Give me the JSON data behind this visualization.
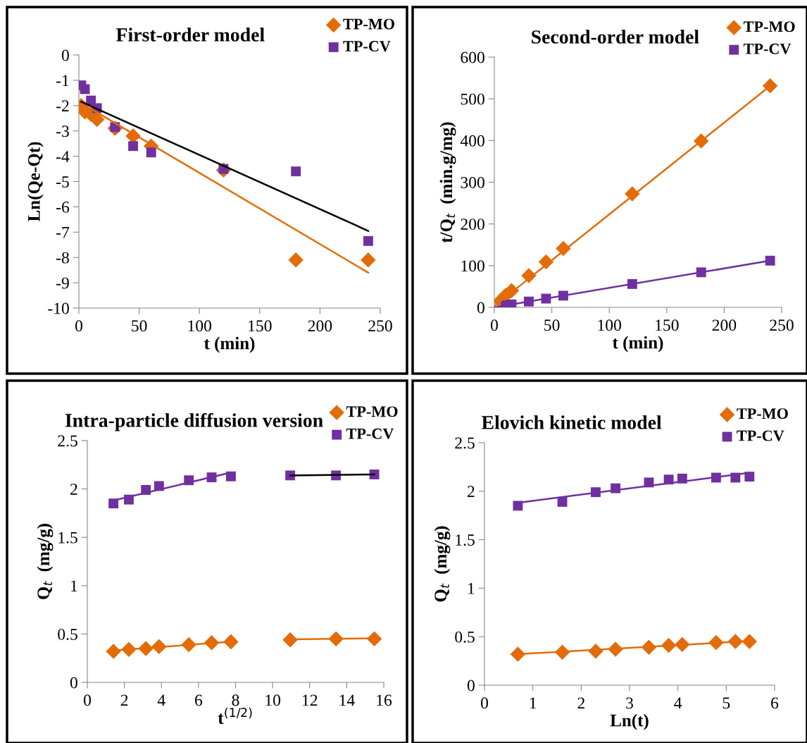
{
  "chart_data": [
    {
      "type": "scatter",
      "title": "First-order model",
      "xlabel": "t (min)",
      "ylabel": "Ln(Qe-Qt)",
      "xlim": [
        0,
        250
      ],
      "xticks": [
        0,
        50,
        100,
        150,
        200,
        250
      ],
      "ylim": [
        -10,
        0
      ],
      "yticks": [
        -10,
        -9,
        -8,
        -7,
        -6,
        -5,
        -4,
        -3,
        -2,
        -1,
        0
      ],
      "grid": false,
      "legend": "top right",
      "x": [
        2,
        5,
        10,
        15,
        30,
        45,
        60,
        120,
        180,
        240
      ],
      "series": [
        {
          "name": "TP-MO",
          "color": "#e36c09",
          "marker": "diamond",
          "values": [
            -2.0,
            -2.25,
            -2.35,
            -2.55,
            -2.9,
            -3.2,
            -3.6,
            -4.55,
            -8.1,
            -8.1
          ]
        },
        {
          "name": "TP-CV",
          "color": "#7030a0",
          "marker": "square",
          "values": [
            -1.2,
            -1.35,
            -1.8,
            -2.1,
            -2.85,
            -3.6,
            -3.85,
            -4.5,
            -4.6,
            -7.35
          ]
        },
        {
          "type": "line",
          "color": "#e36c09",
          "x": [
            2,
            240
          ],
          "values": [
            -1.9,
            -8.6
          ]
        },
        {
          "type": "line",
          "color": "#000000",
          "x": [
            2,
            240
          ],
          "values": [
            -1.85,
            -6.95
          ]
        }
      ]
    },
    {
      "type": "scatter",
      "title": "Second-order model",
      "xlabel": "t (min)",
      "ylabel": "t/Q$_{t}$  (min.g/mg)",
      "xlim": [
        0,
        250
      ],
      "xticks": [
        0,
        50,
        100,
        150,
        200,
        250
      ],
      "ylim": [
        0,
        600
      ],
      "yticks": [
        0,
        100,
        200,
        300,
        400,
        500,
        600
      ],
      "grid": false,
      "legend": "top right",
      "series": [
        {
          "name": "TP-MO",
          "color": "#e36c09",
          "marker": "diamond",
          "x": [
            5,
            10,
            15,
            30,
            45,
            60,
            120,
            180,
            240
          ],
          "values": [
            15,
            29,
            40,
            76,
            109,
            141,
            272,
            399,
            531
          ]
        },
        {
          "name": "TP-CV",
          "color": "#7030a0",
          "marker": "square",
          "x": [
            10,
            15,
            30,
            45,
            60,
            120,
            180,
            240
          ],
          "values": [
            5,
            7,
            14,
            21,
            28,
            56,
            84,
            112
          ]
        },
        {
          "type": "line",
          "color": "#e36c09",
          "x": [
            0,
            240
          ],
          "values": [
            3,
            531
          ]
        },
        {
          "type": "line",
          "color": "#7030a0",
          "x": [
            0,
            240
          ],
          "values": [
            0,
            112
          ]
        }
      ]
    },
    {
      "type": "scatter",
      "title": "Intra-particle diffusion version",
      "xlabel": "t$^{(1/2)}$",
      "ylabel": "Q$_{t}$  (mg/g)",
      "xlim": [
        0,
        16
      ],
      "xticks": [
        0,
        2,
        4,
        6,
        8,
        10,
        12,
        14,
        16
      ],
      "ylim": [
        0,
        2.5
      ],
      "yticks": [
        0,
        0.5,
        1,
        1.5,
        2,
        2.5
      ],
      "grid": false,
      "legend": "top right",
      "x": [
        1.41,
        2.24,
        3.16,
        3.87,
        5.48,
        6.71,
        7.75,
        10.95,
        13.42,
        15.49
      ],
      "series": [
        {
          "name": "TP-MO",
          "color": "#e36c09",
          "marker": "diamond",
          "values": [
            0.32,
            0.34,
            0.35,
            0.37,
            0.39,
            0.41,
            0.42,
            0.44,
            0.45,
            0.45
          ]
        },
        {
          "name": "TP-CV",
          "color": "#7030a0",
          "marker": "square",
          "values": [
            1.85,
            1.89,
            1.99,
            2.03,
            2.09,
            2.12,
            2.13,
            2.14,
            2.14,
            2.15
          ]
        },
        {
          "type": "line",
          "color": "#e36c09",
          "x": [
            1.41,
            7.75
          ],
          "values": [
            0.33,
            0.42
          ]
        },
        {
          "type": "line",
          "color": "#e36c09",
          "x": [
            10.95,
            15.49
          ],
          "values": [
            0.445,
            0.455
          ]
        },
        {
          "type": "line",
          "color": "#7030a0",
          "x": [
            1.41,
            7.75
          ],
          "values": [
            1.88,
            2.17
          ]
        },
        {
          "type": "line",
          "color": "#000000",
          "x": [
            10.95,
            15.49
          ],
          "values": [
            2.14,
            2.15
          ]
        }
      ]
    },
    {
      "type": "scatter",
      "title": "Elovich kinetic model",
      "xlabel": "Ln(t)",
      "ylabel": "Q$_{t}$  (mg/g)",
      "xlim": [
        0,
        6
      ],
      "xticks": [
        0,
        1,
        2,
        3,
        4,
        5,
        6
      ],
      "ylim": [
        0,
        2.5
      ],
      "yticks": [
        0,
        0.5,
        1,
        1.5,
        2,
        2.5
      ],
      "grid": false,
      "legend": "top right",
      "x": [
        0.69,
        1.61,
        2.3,
        2.71,
        3.4,
        3.81,
        4.09,
        4.79,
        5.19,
        5.48
      ],
      "series": [
        {
          "name": "TP-MO",
          "color": "#e36c09",
          "marker": "diamond",
          "values": [
            0.32,
            0.34,
            0.35,
            0.37,
            0.39,
            0.41,
            0.42,
            0.44,
            0.45,
            0.45
          ]
        },
        {
          "name": "TP-CV",
          "color": "#7030a0",
          "marker": "square",
          "values": [
            1.85,
            1.89,
            1.99,
            2.03,
            2.09,
            2.12,
            2.13,
            2.14,
            2.14,
            2.15
          ]
        },
        {
          "type": "line",
          "color": "#e36c09",
          "x": [
            0.69,
            5.48
          ],
          "values": [
            0.32,
            0.455
          ]
        },
        {
          "type": "line",
          "color": "#7030a0",
          "x": [
            0.69,
            5.48
          ],
          "values": [
            1.88,
            2.19
          ]
        }
      ]
    }
  ]
}
